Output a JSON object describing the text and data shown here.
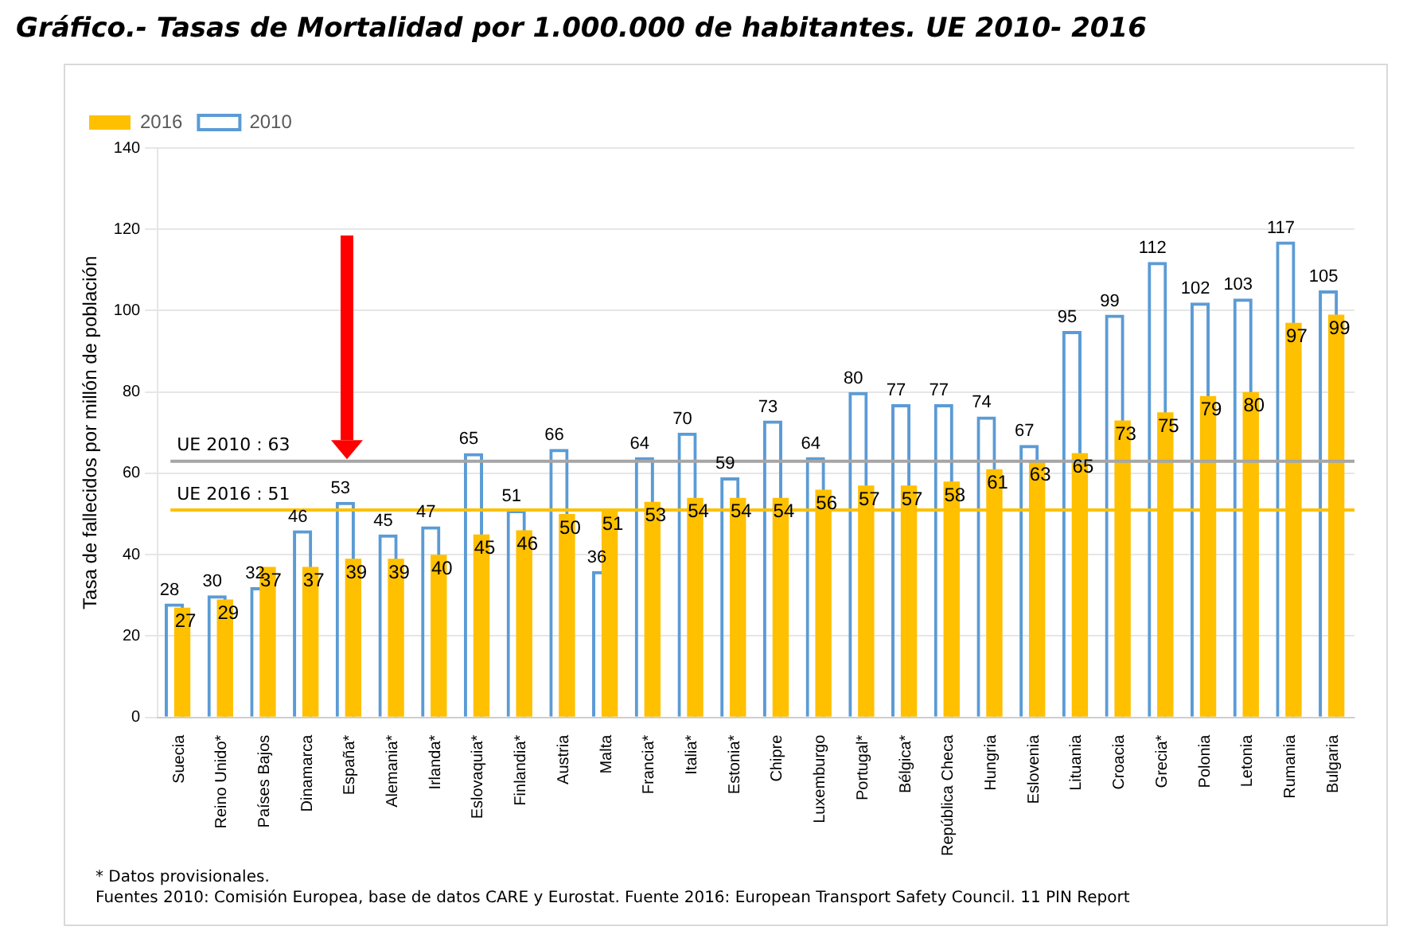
{
  "chart_data": {
    "type": "bar",
    "title": "Gráfico.- Tasas de Mortalidad por 1.000.000 de habitantes. UE 2010- 2016",
    "ylabel": "Tasa de fallecidos por millón de población",
    "categories": [
      "Suecia",
      "Reino Unido*",
      "Países Bajos",
      "Dinamarca",
      "España*",
      "Alemania*",
      "Irlanda*",
      "Eslovaquia*",
      "Finlandia*",
      "Austria",
      "Malta",
      "Francia*",
      "Italia*",
      "Estonia*",
      "Chipre",
      "Luxemburgo",
      "Portugal*",
      "Bélgica*",
      "República Checa",
      "Hungria",
      "Eslovenia",
      "Lituania",
      "Croacia",
      "Grecia*",
      "Polonia",
      "Letonia",
      "Rumania",
      "Bulgaria"
    ],
    "series": [
      {
        "name": "2010",
        "color": "#5b9bd5",
        "values": [
          28,
          30,
          32,
          46,
          53,
          45,
          47,
          65,
          51,
          66,
          36,
          64,
          70,
          59,
          73,
          64,
          80,
          77,
          77,
          74,
          67,
          95,
          99,
          112,
          102,
          103,
          117,
          105
        ]
      },
      {
        "name": "2016",
        "color": "#ffc000",
        "values": [
          27,
          29,
          37,
          37,
          39,
          39,
          40,
          45,
          46,
          50,
          51,
          53,
          54,
          54,
          54,
          56,
          57,
          57,
          58,
          61,
          63,
          65,
          73,
          75,
          79,
          80,
          97,
          99
        ]
      }
    ],
    "ylim": [
      0,
      140
    ],
    "yticks": [
      0,
      20,
      40,
      60,
      80,
      100,
      120,
      140
    ],
    "grid": "y",
    "legend": "top left",
    "data_labels": true,
    "ref_lines": [
      {
        "axis": "y",
        "value": 63,
        "label": "UE 2010 : 63",
        "color": "#a6a6a6"
      },
      {
        "axis": "y",
        "value": 51,
        "label": "UE 2016 : 51",
        "color": "#ffc000"
      }
    ],
    "annotations": [
      "* Datos provisionales.",
      "Fuentes 2010: Comisión Europea, base de datos CARE y Eurostat. Fuente 2016: European Transport Safety Council. 11 PIN Report"
    ]
  }
}
